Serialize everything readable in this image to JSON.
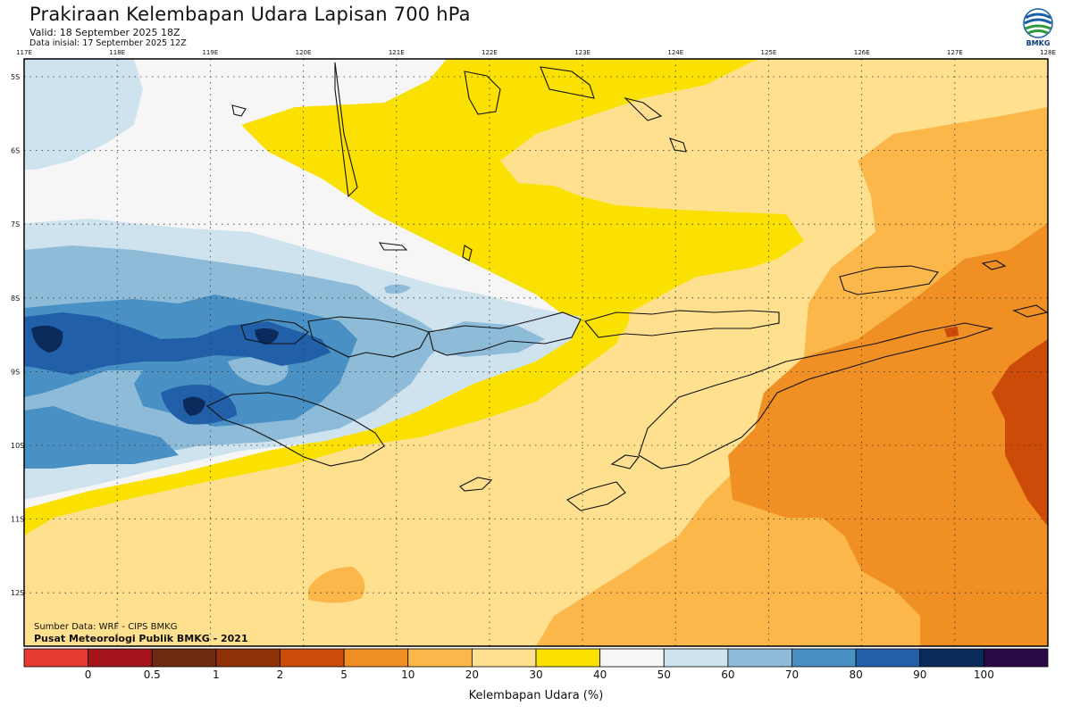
{
  "header": {
    "title": "Prakiraan Kelembapan Udara Lapisan 700 hPa",
    "valid": "Valid: 18 September 2025 18Z",
    "initial": "Data inisial: 17 September 2025 12Z"
  },
  "logo": {
    "text": "BMKG",
    "icon": "bmkg-logo-icon"
  },
  "axes": {
    "lon_labels": [
      "117E",
      "118E",
      "119E",
      "120E",
      "121E",
      "122E",
      "123E",
      "124E",
      "125E",
      "126E",
      "127E",
      "128E"
    ],
    "lat_labels": [
      "5S",
      "6S",
      "7S",
      "8S",
      "9S",
      "10S",
      "11S",
      "12S"
    ]
  },
  "credits": {
    "source": "Sumber Data: WRF - CIPS BMKG",
    "center": "Pusat Meteorologi Publik BMKG - 2021"
  },
  "legend": {
    "title": "Kelembapan Udara (%)",
    "labels": [
      "0",
      "0.5",
      "1",
      "2",
      "5",
      "10",
      "20",
      "30",
      "40",
      "50",
      "60",
      "70",
      "80",
      "90",
      "100"
    ],
    "colors": [
      "#e53a32",
      "#a3141b",
      "#6e2b12",
      "#8f3208",
      "#cc4b08",
      "#f08f24",
      "#fbb74a",
      "#fee08f",
      "#fae101",
      "#f6f6f6",
      "#cfe3ef",
      "#8ebcd8",
      "#4990c4",
      "#2160a8",
      "#0b2b5c",
      "#2a0a45"
    ]
  },
  "map_colors": {
    "ocean_white": "#f6f6f6",
    "very_light_blue": "#cfe3ef",
    "light_blue": "#8ebcd8",
    "mid_blue": "#4990c4",
    "dark_blue": "#2160a8",
    "navy": "#0b2b5c",
    "yellow": "#fae101",
    "pale_orange": "#fee08f",
    "light_orange": "#fbb74a",
    "orange": "#f08f24",
    "dark_orange": "#cc4b08"
  }
}
